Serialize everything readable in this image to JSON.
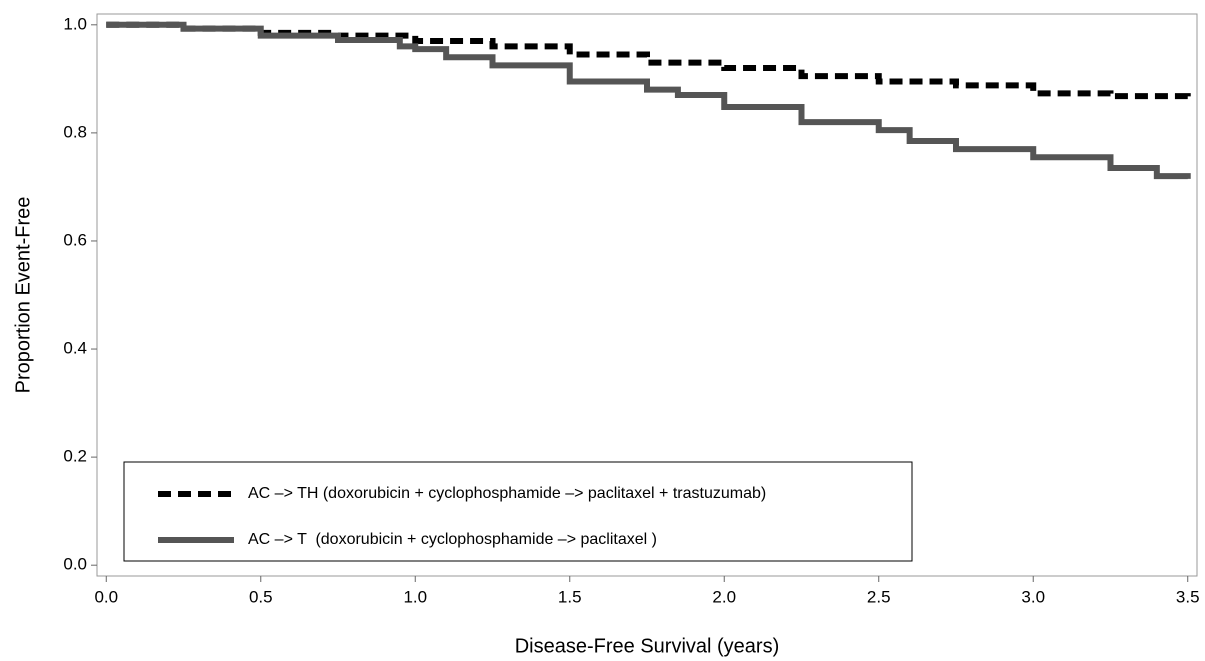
{
  "chart_data": {
    "type": "line",
    "step": true,
    "x_label": "Disease-Free Survival (years)",
    "y_label": "Proportion Event-Free",
    "xlim": [
      -0.03,
      3.53
    ],
    "ylim": [
      -0.02,
      1.02
    ],
    "xticks": [
      {
        "value": 0,
        "label": "0.0"
      },
      0.5,
      {
        "value": 1,
        "label": "1.0"
      },
      1.5,
      {
        "value": 2,
        "label": "2.0"
      },
      2.5,
      {
        "value": 3,
        "label": "3.0"
      },
      3.5
    ],
    "yticks": [
      {
        "value": 0,
        "label": "0.0"
      },
      0.2,
      0.4,
      0.6,
      0.8,
      {
        "value": 1,
        "label": "1.0"
      }
    ],
    "legend": "lower left",
    "series": [
      {
        "name": "AC –> TH (doxorubicin + cyclophosphamide –> paclitaxel + trastuzumab)",
        "color": "#000000",
        "style": "dashed",
        "x": [
          0,
          0.25,
          0.5,
          0.75,
          1.0,
          1.25,
          1.5,
          1.75,
          2.0,
          2.25,
          2.5,
          2.75,
          3.0,
          3.25,
          3.5
        ],
        "values": [
          1.0,
          0.993,
          0.985,
          0.98,
          0.97,
          0.96,
          0.945,
          0.93,
          0.92,
          0.905,
          0.895,
          0.888,
          0.873,
          0.868,
          0.866
        ]
      },
      {
        "name": "AC –> T  (doxorubicin + cyclophosphamide –> paclitaxel )",
        "color": "#555555",
        "style": "solid",
        "x": [
          0,
          0.25,
          0.5,
          0.75,
          0.95,
          1.0,
          1.1,
          1.25,
          1.5,
          1.75,
          1.85,
          2.0,
          2.25,
          2.5,
          2.6,
          2.75,
          3.0,
          3.25,
          3.4,
          3.5
        ],
        "values": [
          1.0,
          0.993,
          0.98,
          0.972,
          0.96,
          0.955,
          0.94,
          0.925,
          0.895,
          0.88,
          0.87,
          0.848,
          0.82,
          0.805,
          0.785,
          0.77,
          0.755,
          0.735,
          0.72,
          0.715
        ]
      }
    ]
  }
}
